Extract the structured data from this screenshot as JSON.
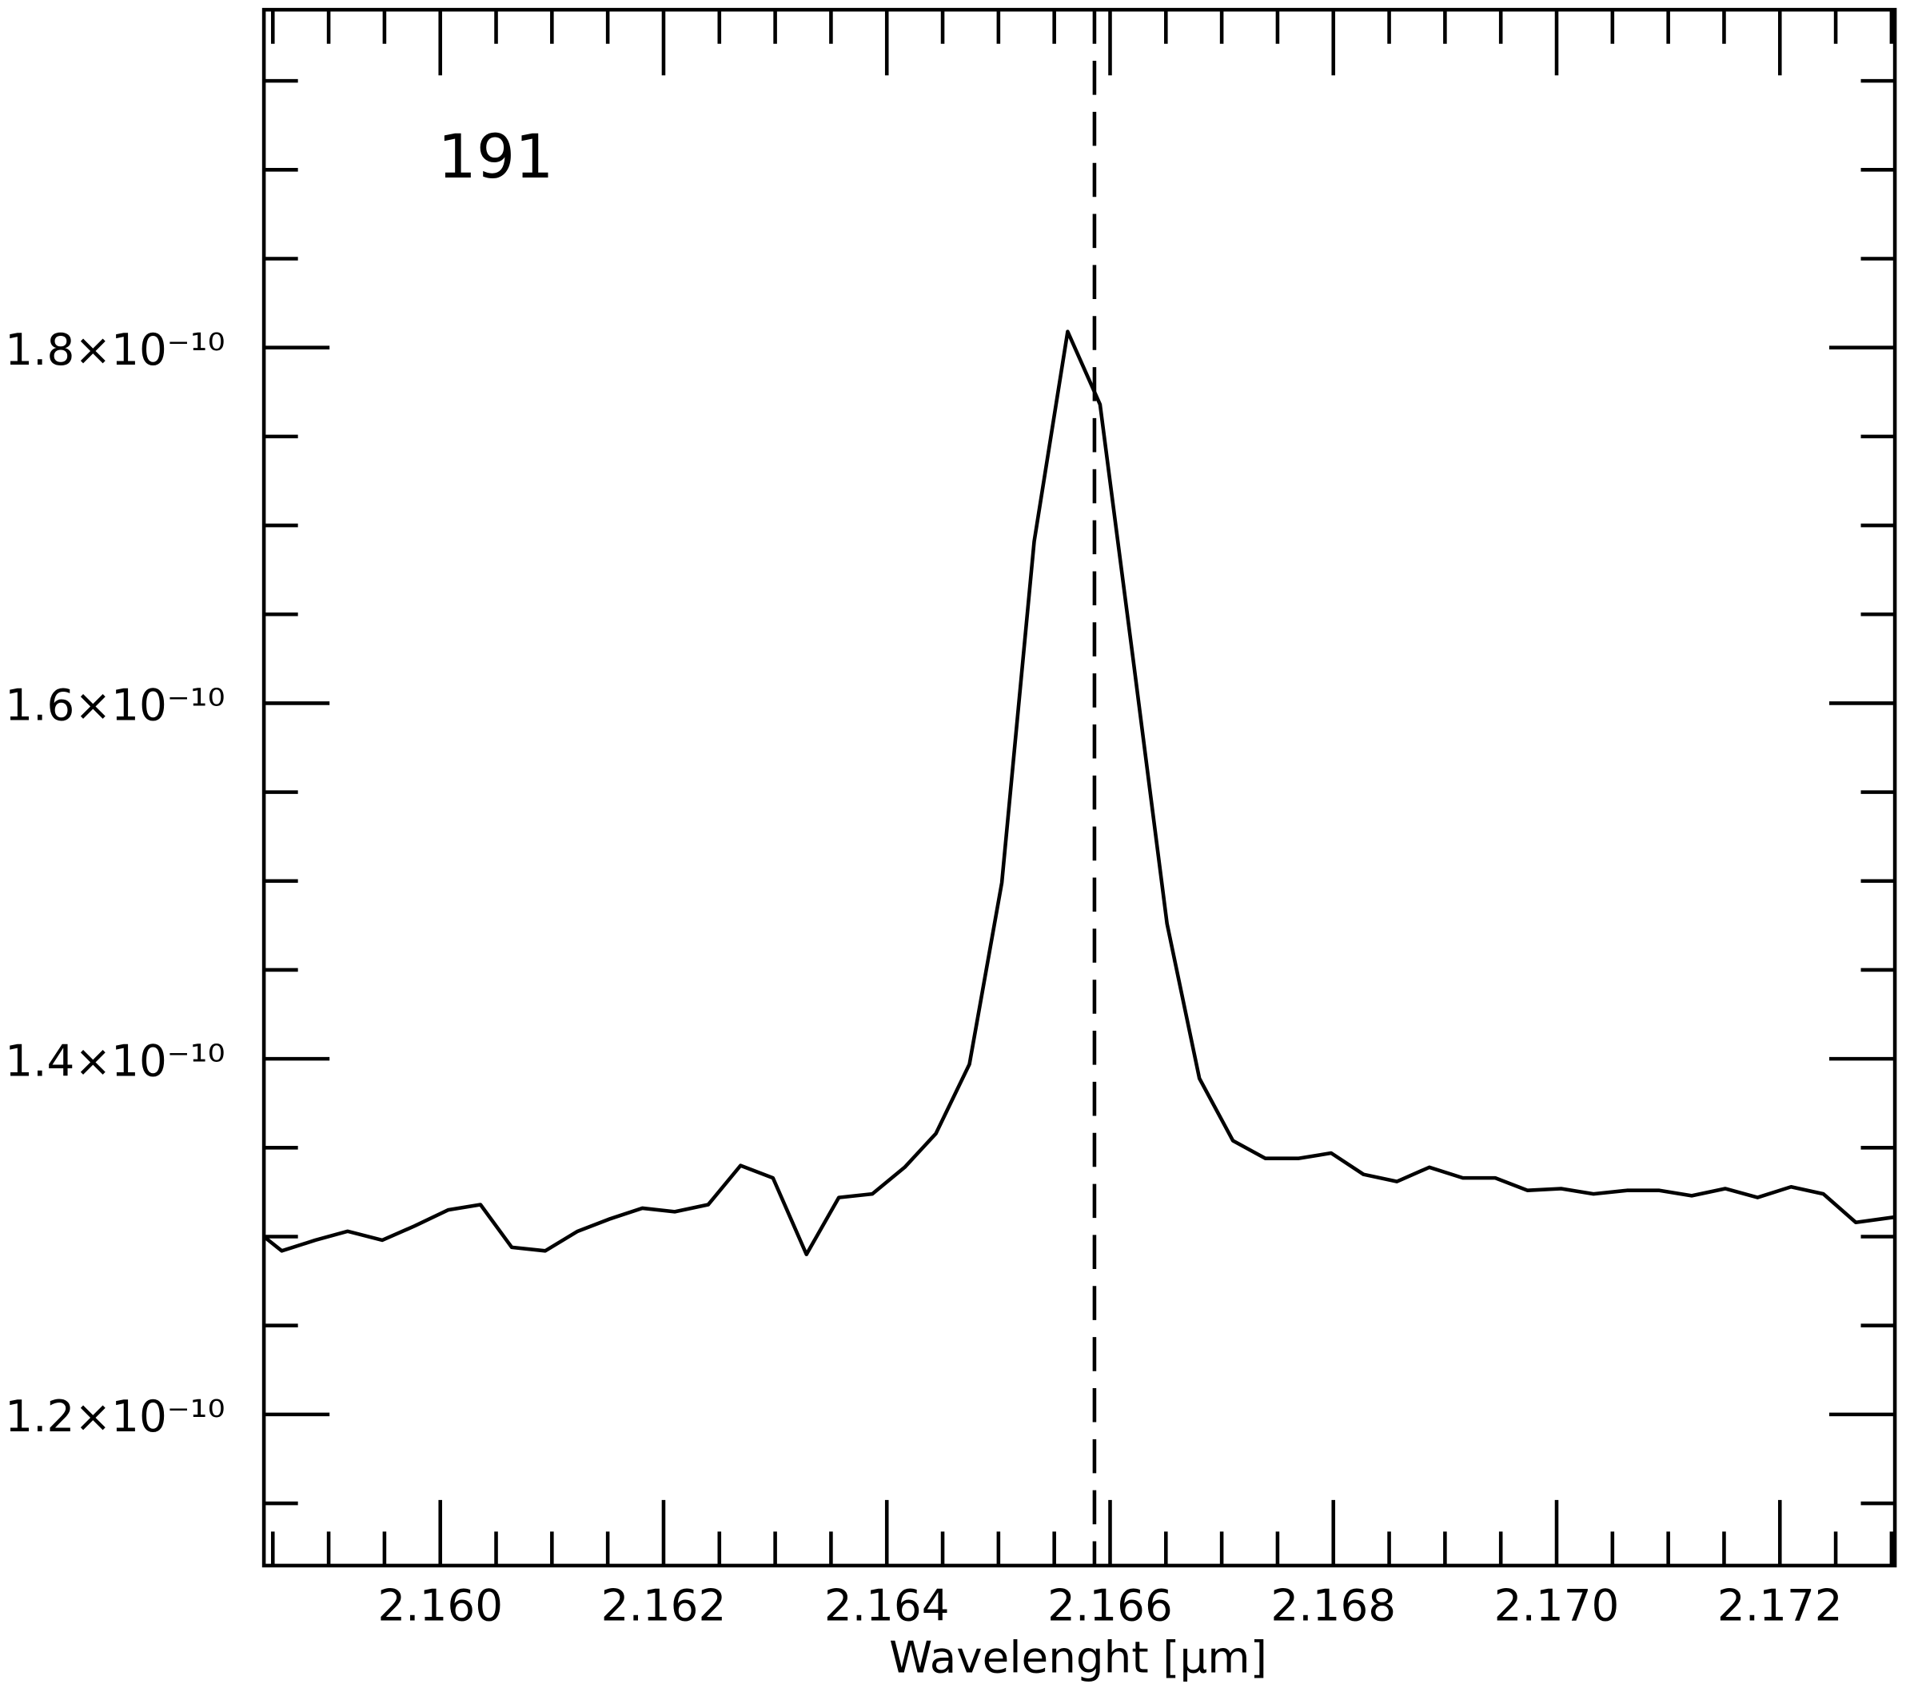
{
  "chart_data": {
    "type": "line",
    "xlabel": "Wavelenght [μm]",
    "annotation": {
      "text": "191",
      "color": "#0000ff"
    },
    "reference_line": {
      "x": 2.16586,
      "style": "dashed"
    },
    "x": [
      2.15842,
      2.15858,
      2.15888,
      2.15917,
      2.15948,
      2.15977,
      2.16007,
      2.16036,
      2.16064,
      2.16094,
      2.16123,
      2.16152,
      2.16181,
      2.1621,
      2.1624,
      2.16269,
      2.16298,
      2.16328,
      2.16357,
      2.16387,
      2.16416,
      2.16444,
      2.16474,
      2.16503,
      2.16532,
      2.16562,
      2.16591,
      2.16621,
      2.16651,
      2.1668,
      2.1671,
      2.16739,
      2.16769,
      2.16798,
      2.16827,
      2.16857,
      2.16886,
      2.16916,
      2.16945,
      2.16974,
      2.17004,
      2.17033,
      2.17063,
      2.17092,
      2.17121,
      2.17151,
      2.1718,
      2.1721,
      2.17239,
      2.17268,
      2.17303
    ],
    "series": [
      {
        "color": "#000000",
        "values": [
          1.3e-10,
          1.292e-10,
          1.298e-10,
          1.303e-10,
          1.298e-10,
          1.306e-10,
          1.315e-10,
          1.318e-10,
          1.294e-10,
          1.292e-10,
          1.303e-10,
          1.31e-10,
          1.316e-10,
          1.314e-10,
          1.318e-10,
          1.34e-10,
          1.333e-10,
          1.29e-10,
          1.322e-10,
          1.324e-10,
          1.339e-10,
          1.358e-10,
          1.397e-10,
          1.499e-10,
          1.691e-10,
          1.809e-10,
          1.768e-10,
          1.623e-10,
          1.476e-10,
          1.389e-10,
          1.354e-10,
          1.344e-10,
          1.344e-10,
          1.347e-10,
          1.335e-10,
          1.331e-10,
          1.339e-10,
          1.333e-10,
          1.333e-10,
          1.326e-10,
          1.327e-10,
          1.324e-10,
          1.326e-10,
          1.326e-10,
          1.323e-10,
          1.327e-10,
          1.322e-10,
          1.328e-10,
          1.324e-10,
          1.308e-10,
          1.311e-10
        ]
      }
    ],
    "xlim": [
      2.15842,
      2.17303
    ],
    "ylim": [
      1.115e-10,
      1.99e-10
    ],
    "xticks": [
      {
        "value": 2.16,
        "label": "2.160"
      },
      {
        "value": 2.162,
        "label": "2.162"
      },
      {
        "value": 2.164,
        "label": "2.164"
      },
      {
        "value": 2.166,
        "label": "2.166"
      },
      {
        "value": 2.168,
        "label": "2.168"
      },
      {
        "value": 2.17,
        "label": "2.170"
      },
      {
        "value": 2.172,
        "label": "2.172"
      }
    ],
    "xminorticks": [
      2.1585,
      2.159,
      2.1595,
      2.1605,
      2.161,
      2.1615,
      2.1625,
      2.163,
      2.1635,
      2.1645,
      2.165,
      2.1655,
      2.1665,
      2.167,
      2.1675,
      2.1685,
      2.169,
      2.1695,
      2.1705,
      2.171,
      2.1715,
      2.1725,
      2.173
    ],
    "yticks": [
      {
        "value": 1.2e-10,
        "label": "1.2×10⁻¹⁰"
      },
      {
        "value": 1.4e-10,
        "label": "1.4×10⁻¹⁰"
      },
      {
        "value": 1.6e-10,
        "label": "1.6×10⁻¹⁰"
      },
      {
        "value": 1.8e-10,
        "label": "1.8×10⁻¹⁰"
      }
    ],
    "yminorticks": [
      1.15e-10,
      1.25e-10,
      1.3e-10,
      1.35e-10,
      1.45e-10,
      1.5e-10,
      1.55e-10,
      1.65e-10,
      1.7e-10,
      1.75e-10,
      1.85e-10,
      1.9e-10,
      1.95e-10
    ]
  }
}
